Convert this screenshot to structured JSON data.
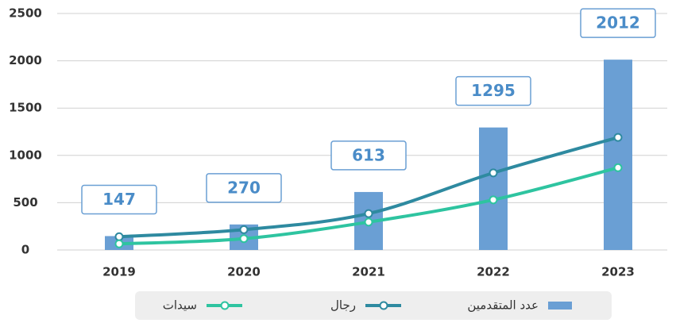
{
  "chart_data": {
    "type": "bar-line",
    "categories": [
      "2019",
      "2020",
      "2021",
      "2022",
      "2023"
    ],
    "series": [
      {
        "name": "عدد المتقدمين",
        "type": "bar",
        "color": "#6a9fd4",
        "values": [
          147,
          270,
          613,
          1295,
          2012
        ]
      },
      {
        "name": "رجال",
        "type": "line",
        "color": "#2e8aa0",
        "values": [
          140,
          215,
          385,
          815,
          1190
        ]
      },
      {
        "name": "سيدات",
        "type": "line",
        "color": "#2ec4a0",
        "values": [
          65,
          120,
          295,
          530,
          870
        ]
      }
    ],
    "ylim": [
      0,
      2500
    ],
    "yticks": [
      0,
      500,
      1000,
      1500,
      2000,
      2500
    ],
    "grid": true,
    "legend": "bottom"
  }
}
